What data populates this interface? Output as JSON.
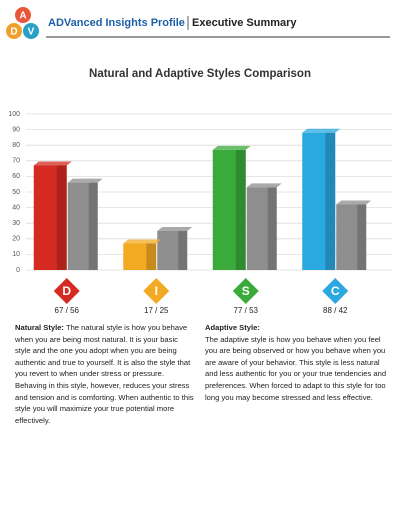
{
  "header": {
    "logo_letters": [
      "A",
      "D",
      "V"
    ],
    "title": "ADVanced Insights Profile",
    "subtitle": "Executive Summary"
  },
  "chart_data": {
    "type": "bar",
    "title": "Natural and Adaptive Styles Comparison",
    "categories": [
      "D",
      "I",
      "S",
      "C"
    ],
    "series": [
      {
        "colors": [
          "#d42a22",
          "#f2aa22",
          "#3aaa3a",
          "#2aa8e0"
        ],
        "values": [
          67,
          17,
          77,
          88
        ]
      },
      {
        "color": "#8e8e8e",
        "values": [
          56,
          25,
          53,
          42
        ]
      }
    ],
    "pair_labels": [
      "67 / 56",
      "17 / 25",
      "77 / 53",
      "88 / 42"
    ],
    "ylim": [
      0,
      100
    ],
    "yticks": [
      0,
      10,
      20,
      30,
      40,
      50,
      60,
      70,
      80,
      90,
      100
    ],
    "grid": true
  },
  "text": {
    "natural": {
      "heading": "Natural Style:",
      "body": "The natural style is how you behave when you are being  most natural. It is your basic style and the one you adopt when you are being authentic and true to yourself.  It is also the style that you revert to when under stress or pressure. Behaving in this style, however, reduces your stress and tension and is comforting. When authentic to this style you will maximize your true potential more effectively."
    },
    "adaptive": {
      "heading": "Adaptive Style:",
      "body": "The adaptive style is how you behave when you feel you are being observed or how you behave when you are aware of your behavior. This style is less natural and less authentic for you or your true tendencies and preferences. When forced to adapt to this style for too long you may become stressed and less effective."
    }
  }
}
